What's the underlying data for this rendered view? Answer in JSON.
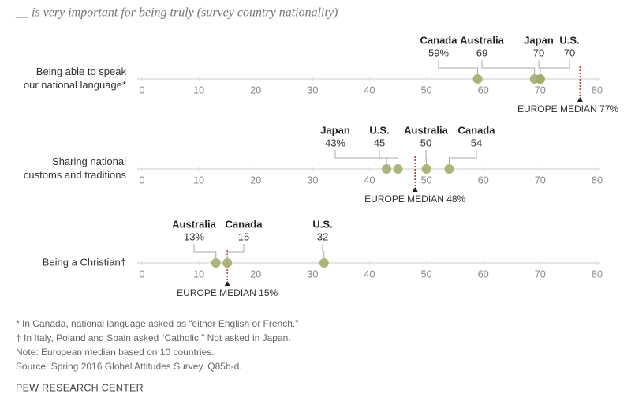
{
  "header": {
    "title": "__ is very important for being truly (survey country nationality)"
  },
  "chart_data": [
    {
      "type": "dot",
      "title": [
        "Being able to speak",
        "our national language*"
      ],
      "categories": [
        "Canada",
        "Australia",
        "Japan",
        "U.S."
      ],
      "values": [
        59,
        69,
        70,
        70
      ],
      "value_labels": [
        "59%",
        "69",
        "70",
        "70"
      ],
      "color": "#a3ad6b",
      "median": 77,
      "median_label": "EUROPE MEDIAN 77%",
      "median_color": "#b83a2e",
      "xlim": [
        0,
        80
      ],
      "xticks": [
        0,
        10,
        20,
        30,
        40,
        50,
        60,
        70,
        80
      ]
    },
    {
      "type": "dot",
      "title": [
        "Sharing national",
        "customs and traditions"
      ],
      "categories": [
        "Japan",
        "U.S.",
        "Australia",
        "Canada"
      ],
      "values": [
        43,
        45,
        50,
        54
      ],
      "value_labels": [
        "43%",
        "45",
        "50",
        "54"
      ],
      "color": "#a3ad6b",
      "median": 48,
      "median_label": "EUROPE MEDIAN 48%",
      "median_color": "#b83a2e",
      "xlim": [
        0,
        80
      ],
      "xticks": [
        0,
        10,
        20,
        30,
        40,
        50,
        60,
        70,
        80
      ]
    },
    {
      "type": "dot",
      "title": [
        "Being a Christian†"
      ],
      "categories": [
        "Australia",
        "Canada",
        "U.S."
      ],
      "values": [
        13,
        15,
        32
      ],
      "value_labels": [
        "13%",
        "15",
        "32"
      ],
      "color": "#a3ad6b",
      "median": 15,
      "median_label": "EUROPE MEDIAN 15%",
      "median_color": "#b83a2e",
      "xlim": [
        0,
        80
      ],
      "xticks": [
        0,
        10,
        20,
        30,
        40,
        50,
        60,
        70,
        80
      ]
    }
  ],
  "footer": {
    "notes": [
      "* In Canada, national language asked as “either English or French.”",
      "† In Italy, Poland and Spain asked “Catholic.” Not asked in Japan.",
      "Note: European median based on 10 countries.",
      "Source: Spring 2016 Global Attitudes Survey. Q85b-d."
    ],
    "brand": "PEW RESEARCH CENTER"
  }
}
